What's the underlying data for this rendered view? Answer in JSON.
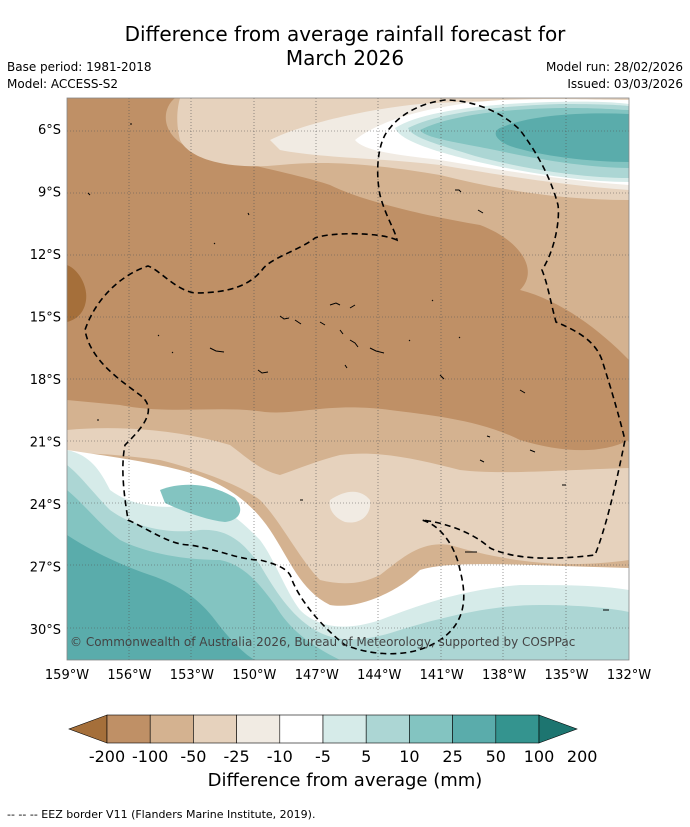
{
  "title_line1": "Difference from average rainfall forecast for",
  "title_line2": "March 2026",
  "base_period": "Base period: 1981-2018",
  "model": "Model: ACCESS-S2",
  "model_run": "Model run: 28/02/2026",
  "issued": "Issued: 03/03/2026",
  "copyright": "© Commonwealth of Australia 2026, Bureau of Meteorology, supported by COSPPac",
  "footer": "-- -- -- EEZ border V11 (Flanders Marine Institute, 2019).",
  "colors": {
    "c_-200": "#a56f3a",
    "c_-100": "#bf9066",
    "c_-50": "#d4b290",
    "c_-25": "#e6d2bd",
    "c_-10": "#f1ebe3",
    "c_-5": "#ffffff",
    "c_5": "#d6ebe9",
    "c_10": "#acd6d4",
    "c_25": "#83c4c1",
    "c_50": "#5aacab",
    "c_100": "#34948f",
    "c_200": "#1d7570"
  },
  "chart_data": {
    "type": "heatmap",
    "title": "Difference from average rainfall forecast for March 2026",
    "x_axis": {
      "label": "",
      "range": [
        -159,
        -132
      ],
      "ticks": [
        "159°W",
        "156°W",
        "153°W",
        "150°W",
        "147°W",
        "144°W",
        "141°W",
        "138°W",
        "135°W",
        "132°W"
      ]
    },
    "y_axis": {
      "label": "",
      "range": [
        -31.5,
        -4.5
      ],
      "ticks": [
        "6°S",
        "9°S",
        "12°S",
        "15°S",
        "18°S",
        "21°S",
        "24°S",
        "27°S",
        "30°S"
      ]
    },
    "colorbar": {
      "label": "Difference from average (mm)",
      "tick_labels": [
        "-200",
        "-100",
        "-50",
        "-25",
        "-10",
        "-5",
        "5",
        "10",
        "25",
        "50",
        "100",
        "200"
      ],
      "levels": [
        -200,
        -100,
        -50,
        -25,
        -10,
        -5,
        5,
        10,
        25,
        50,
        100,
        200
      ]
    },
    "summary": "Drier than average (-50 to -100 mm) over most of the region north of 21°S; wetter than average (25 to 100 mm) in the south-west and north-east corners."
  }
}
